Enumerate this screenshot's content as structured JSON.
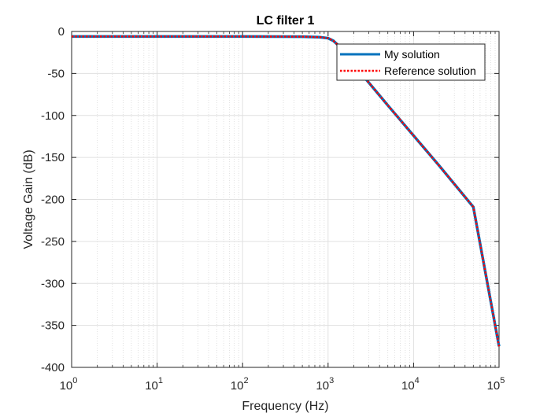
{
  "chart_data": {
    "type": "line",
    "title": "LC filter 1",
    "xlabel": "Frequency (Hz)",
    "ylabel": "Voltage Gain (dB)",
    "xscale": "log",
    "xlim": [
      1,
      100000
    ],
    "ylim": [
      -400,
      0
    ],
    "xticks": [
      {
        "base": "10",
        "exp": "0"
      },
      {
        "base": "10",
        "exp": "1"
      },
      {
        "base": "10",
        "exp": "2"
      },
      {
        "base": "10",
        "exp": "3"
      },
      {
        "base": "10",
        "exp": "4"
      },
      {
        "base": "10",
        "exp": "5"
      }
    ],
    "yticks": [
      "0",
      "-50",
      "-100",
      "-150",
      "-200",
      "-250",
      "-300",
      "-350",
      "-400"
    ],
    "grid": true,
    "minor_grid": true,
    "legend": "top-right",
    "series": [
      {
        "name": "My solution",
        "color": "#0072BD",
        "style": "solid",
        "x": [
          1,
          10,
          100,
          500,
          800,
          1000,
          1150,
          1300,
          1600,
          2000,
          3000,
          5000,
          10000,
          20000,
          50000,
          100000
        ],
        "y": [
          -6,
          -6,
          -6,
          -6.2,
          -6.8,
          -8,
          -11,
          -16,
          -27,
          -40,
          -61,
          -88,
          -124,
          -160,
          -209,
          -375
        ]
      },
      {
        "name": "Reference solution",
        "color": "#FF0000",
        "style": "dotted",
        "x": [
          1,
          10,
          100,
          500,
          800,
          1000,
          1150,
          1300,
          1600,
          2000,
          3000,
          5000,
          10000,
          20000,
          50000,
          100000
        ],
        "y": [
          -6,
          -6,
          -6,
          -6.2,
          -6.8,
          -8,
          -11,
          -16,
          -27,
          -40,
          -61,
          -88,
          -124,
          -160,
          -209,
          -375
        ]
      }
    ]
  }
}
